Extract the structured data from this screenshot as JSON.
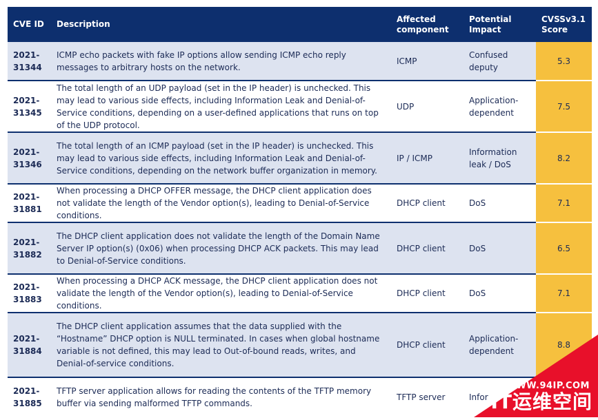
{
  "headers": {
    "cve_id": "CVE ID",
    "description": "Description",
    "component": "Affected component",
    "impact": "Potential Impact",
    "score": "CVSSv3.1 Score"
  },
  "rows": [
    {
      "id_year": "2021-",
      "id_num": "31344",
      "description": "ICMP echo packets with fake IP options allow sending ICMP echo reply messages to arbitrary hosts on the network.",
      "component": "ICMP",
      "impact": "Confused deputy",
      "score": "5.3"
    },
    {
      "id_year": "2021-",
      "id_num": "31345",
      "description": "The total length of an UDP payload (set in the IP header) is unchecked. This may lead to various side effects, including Information Leak and Denial-of-Service conditions, depending on a user-defined applications that runs on top of the UDP protocol.",
      "component": "UDP",
      "impact": "Application-dependent",
      "score": "7.5"
    },
    {
      "id_year": "2021-",
      "id_num": "31346",
      "description": "The total length of an ICMP payload (set in the IP header) is unchecked. This may lead to various side effects, including Information Leak and Denial-of-Service conditions, depending on the network buffer organization in memory.",
      "component": "IP / ICMP",
      "impact": "Information leak / DoS",
      "score": "8.2"
    },
    {
      "id_year": "2021-",
      "id_num": "31881",
      "description": "When processing a DHCP OFFER message, the DHCP client application does not validate the length of the Vendor option(s), leading to Denial-of-Service conditions.",
      "component": "DHCP client",
      "impact": "DoS",
      "score": "7.1"
    },
    {
      "id_year": "2021-",
      "id_num": "31882",
      "description": "The DHCP client application does not validate the length of the Domain Name Server IP option(s) (0x06) when processing DHCP ACK packets. This may lead to Denial-of-Service conditions.",
      "component": "DHCP client",
      "impact": "DoS",
      "score": "6.5"
    },
    {
      "id_year": "2021-",
      "id_num": "31883",
      "description": "When processing a DHCP ACK message, the DHCP client application does not validate the length of the Vendor option(s), leading to Denial-of-Service conditions.",
      "component": "DHCP client",
      "impact": "DoS",
      "score": "7.1"
    },
    {
      "id_year": "2021-",
      "id_num": "31884",
      "description": "The DHCP client application assumes that the data supplied with the “Hostname” DHCP option is NULL terminated. In cases when global hostname variable is not defined, this may lead to Out-of-bound reads, writes, and Denial-of-service conditions.",
      "component": "DHCP client",
      "impact": "Application-dependent",
      "score": "8.8"
    },
    {
      "id_year": "2021-",
      "id_num": "31885",
      "description": "TFTP server application allows for reading the contents of the TFTP memory buffer via sending malformed TFTP commands.",
      "component": "TFTP server",
      "impact": "Infor",
      "score": ""
    }
  ],
  "watermark": {
    "url": "WWW.94IP.COM",
    "name": "IT运维空间",
    "color": "#e8102a"
  }
}
